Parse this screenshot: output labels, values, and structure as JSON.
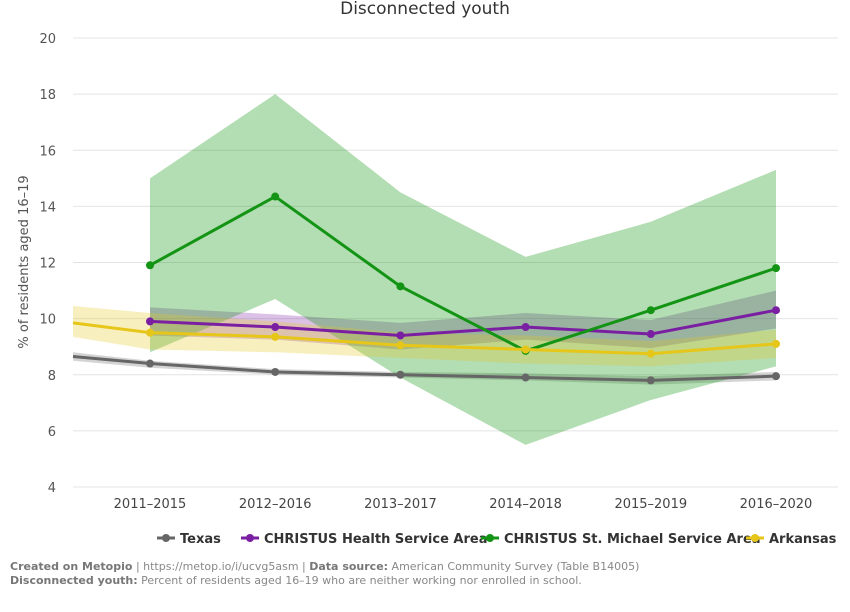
{
  "chart_data": {
    "type": "line",
    "title": "Disconnected youth",
    "ylabel": "% of residents aged 16–19",
    "xlabel": "",
    "categories": [
      "2011–2015",
      "2012–2016",
      "2013–2017",
      "2014–2018",
      "2015–2019",
      "2016–2020"
    ],
    "ylim": [
      4,
      20
    ],
    "yticks": [
      4,
      6,
      8,
      10,
      12,
      14,
      16,
      18,
      20
    ],
    "grid": true,
    "legend_position": "bottom",
    "series": [
      {
        "name": "Texas",
        "color": "#666666",
        "values": [
          8.4,
          8.1,
          8.0,
          7.9,
          7.8,
          7.95
        ],
        "band_upper": [
          8.5,
          8.2,
          8.1,
          8.05,
          7.95,
          8.1
        ],
        "band_lower": [
          8.25,
          8.0,
          7.9,
          7.8,
          7.65,
          7.8
        ],
        "ext_left": {
          "value": 8.65,
          "upper": 8.8,
          "lower": 8.5
        }
      },
      {
        "name": "CHRISTUS Health Service Area",
        "color": "#7b1fa2",
        "values": [
          9.9,
          9.7,
          9.4,
          9.7,
          9.45,
          10.3
        ],
        "band_upper": [
          10.4,
          10.15,
          9.85,
          10.2,
          9.95,
          11.0
        ],
        "band_lower": [
          9.4,
          9.25,
          8.9,
          9.25,
          8.95,
          9.65
        ]
      },
      {
        "name": "CHRISTUS St. Michael Service Area",
        "color": "#149414",
        "values": [
          11.9,
          14.35,
          11.15,
          8.85,
          10.3,
          11.8
        ],
        "band_upper": [
          15.0,
          18.0,
          14.5,
          12.2,
          13.45,
          15.3
        ],
        "band_lower": [
          8.8,
          10.7,
          7.9,
          5.5,
          7.1,
          8.3
        ]
      },
      {
        "name": "Arkansas",
        "color": "#e6c619",
        "values": [
          9.5,
          9.35,
          9.05,
          8.9,
          8.75,
          9.1
        ],
        "band_upper": [
          10.2,
          9.9,
          9.5,
          9.4,
          9.2,
          9.6
        ],
        "band_lower": [
          8.9,
          8.8,
          8.6,
          8.4,
          8.3,
          8.6
        ],
        "ext_left": {
          "value": 9.85,
          "upper": 10.45,
          "lower": 9.35
        }
      }
    ]
  },
  "footer": {
    "created_label": "Created on Metopio",
    "url_text": " | https://metop.io/i/ucvg5asm | ",
    "source_label": "Data source:",
    "source_text": " American Community Survey (Table B14005)",
    "def_label": "Disconnected youth:",
    "def_text": " Percent of residents aged 16–19 who are neither working nor enrolled in school."
  }
}
